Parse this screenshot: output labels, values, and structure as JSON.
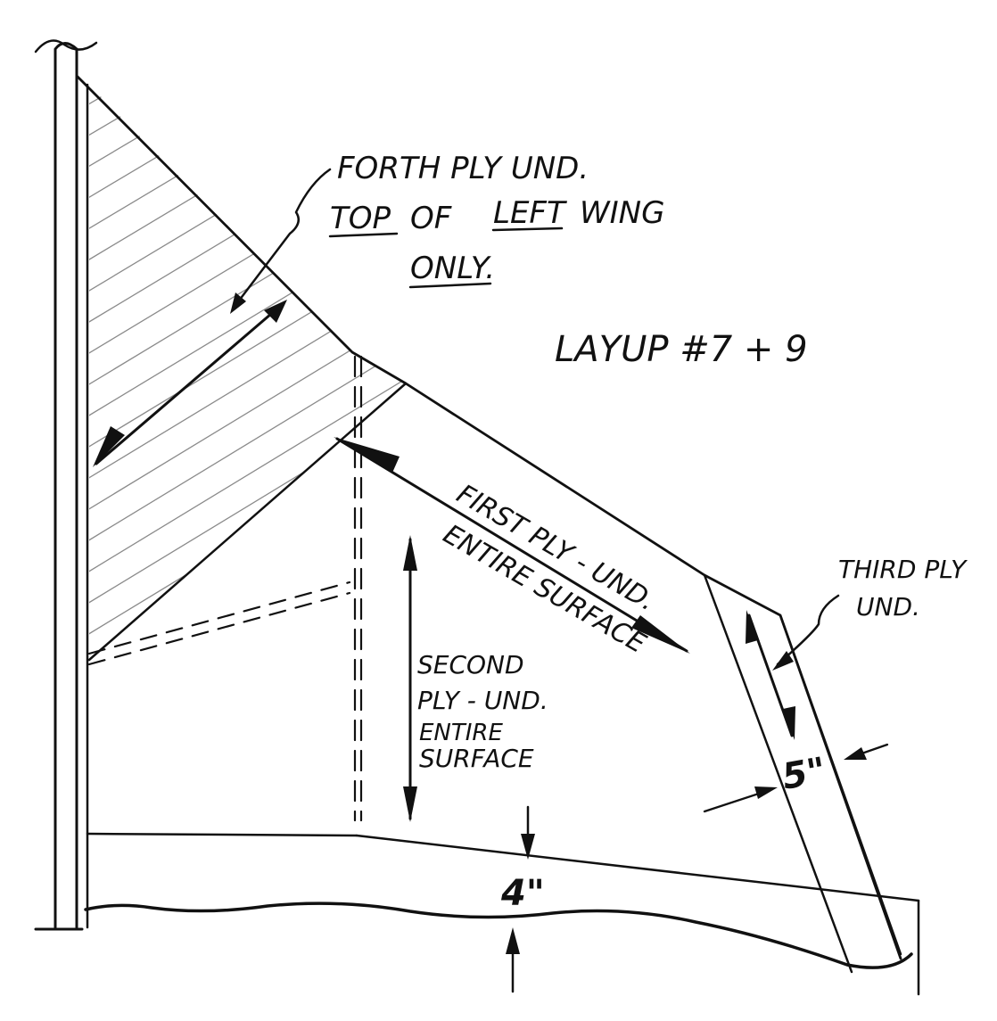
{
  "colors": {
    "ink": "#111111",
    "paper": "#ffffff",
    "hatch": "#8a8a8a"
  },
  "labels": {
    "fourth_ply_line1": "FORTH PLY UND.",
    "fourth_ply_top": "TOP",
    "fourth_ply_of": "OF",
    "fourth_ply_left": "LEFT",
    "fourth_ply_wing": "WING",
    "fourth_ply_only": "ONLY.",
    "layup": "LAYUP #7 + 9",
    "first_ply_line1": "FIRST PLY - UND.",
    "first_ply_line2": "ENTIRE SURFACE",
    "second_ply_line1": "SECOND",
    "second_ply_line2": "PLY - UND.",
    "second_ply_line3": "ENTIRE",
    "second_ply_line4": "SURFACE",
    "third_ply_line1": "THIRD PLY",
    "third_ply_line2": "UND.",
    "dim_five": "5\"",
    "dim_four": "4\""
  }
}
